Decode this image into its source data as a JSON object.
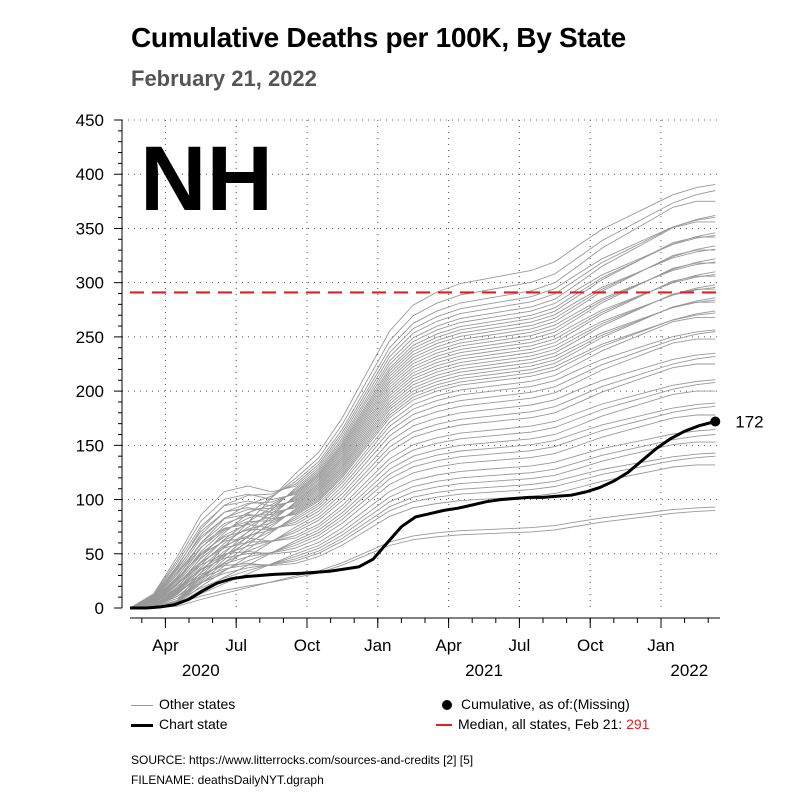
{
  "header": {
    "title": "Cumulative Deaths per 100K, By State",
    "subtitle": "February 21, 2022"
  },
  "chart_data": {
    "type": "line",
    "state_label": "NH",
    "title": "Cumulative Deaths per 100K, By State",
    "subtitle": "February 21, 2022",
    "ylim": [
      0,
      450
    ],
    "y_ticks": [
      0,
      50,
      100,
      150,
      200,
      250,
      300,
      350,
      400,
      450
    ],
    "x_ticks": [
      {
        "label": "Apr",
        "month": 3
      },
      {
        "label": "Jul",
        "month": 6
      },
      {
        "label": "Oct",
        "month": 9
      },
      {
        "label": "Jan",
        "month": 12
      },
      {
        "label": "Apr",
        "month": 15
      },
      {
        "label": "Jul",
        "month": 18
      },
      {
        "label": "Oct",
        "month": 21
      },
      {
        "label": "Jan",
        "month": 24
      }
    ],
    "year_labels": [
      {
        "label": "2020",
        "month": 4.5
      },
      {
        "label": "2021",
        "month": 16.5
      },
      {
        "label": "2022",
        "month": 25.2
      }
    ],
    "x_range_months": [
      1.5,
      26.5
    ],
    "median": {
      "value": 291,
      "color": "#e02020"
    },
    "chart_state": {
      "name": "Chart state",
      "color": "#000000",
      "points": [
        [
          1.5,
          0
        ],
        [
          2.2,
          0
        ],
        [
          2.8,
          1
        ],
        [
          3.4,
          3
        ],
        [
          4.0,
          8
        ],
        [
          4.6,
          16
        ],
        [
          5.2,
          23
        ],
        [
          5.8,
          27
        ],
        [
          6.4,
          29
        ],
        [
          7.0,
          30
        ],
        [
          7.6,
          31
        ],
        [
          8.2,
          31.5
        ],
        [
          8.8,
          32
        ],
        [
          9.4,
          33
        ],
        [
          10.0,
          34
        ],
        [
          10.6,
          36
        ],
        [
          11.2,
          38
        ],
        [
          11.8,
          45
        ],
        [
          12.4,
          60
        ],
        [
          13.0,
          75
        ],
        [
          13.6,
          84
        ],
        [
          14.2,
          87
        ],
        [
          14.8,
          90
        ],
        [
          15.4,
          92
        ],
        [
          16.0,
          95
        ],
        [
          16.6,
          98
        ],
        [
          17.2,
          100
        ],
        [
          17.8,
          101
        ],
        [
          18.4,
          102
        ],
        [
          19.0,
          102
        ],
        [
          19.6,
          103
        ],
        [
          20.2,
          104
        ],
        [
          20.8,
          107
        ],
        [
          21.4,
          111
        ],
        [
          22.0,
          117
        ],
        [
          22.6,
          125
        ],
        [
          23.2,
          136
        ],
        [
          23.8,
          147
        ],
        [
          24.4,
          156
        ],
        [
          25.0,
          163
        ],
        [
          25.6,
          168
        ],
        [
          26.3,
          172
        ]
      ],
      "end_value": 172
    },
    "other_states_final": [
      399,
      385,
      375,
      368,
      362,
      356,
      351,
      346,
      342,
      338,
      334,
      330,
      326,
      322,
      318,
      314,
      310,
      306,
      302,
      298,
      294,
      290,
      286,
      282,
      278,
      274,
      268,
      262,
      255,
      248,
      240,
      232,
      225,
      215,
      208,
      200,
      193,
      186,
      178,
      168,
      160,
      153,
      146,
      140,
      132,
      95,
      90
    ],
    "legend": {
      "other_states": "Other states",
      "chart_state": "Chart state",
      "cumulative": "Cumulative, as of:(Missing)",
      "median_label": "Median, all states, Feb 21:",
      "median_value": "291"
    },
    "end_label": "172"
  },
  "footer": {
    "source": "SOURCE: https://www.litterrocks.com/sources-and-credits [2] [5]",
    "filename": "FILENAME: deathsDailyNYT.dgraph"
  },
  "colors": {
    "other_line": "#999999",
    "chart_line": "#000000",
    "median": "#e02020",
    "grid": "#555555"
  }
}
